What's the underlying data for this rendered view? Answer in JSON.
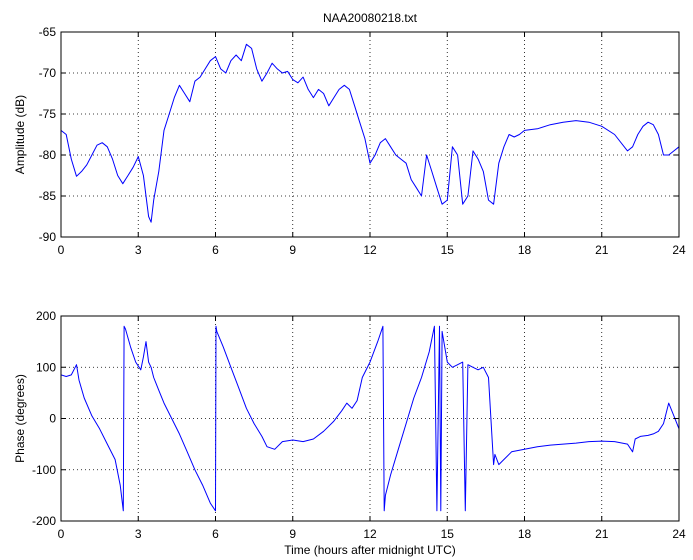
{
  "chart_data": [
    {
      "type": "line",
      "title": "NAA20080218.txt",
      "xlabel": "",
      "ylabel": "Amplitude (dB)",
      "xlim": [
        0,
        24
      ],
      "ylim": [
        -90,
        -65
      ],
      "xticks": [
        0,
        3,
        6,
        9,
        12,
        15,
        18,
        21,
        24
      ],
      "yticks": [
        -90,
        -85,
        -80,
        -75,
        -70,
        -65
      ],
      "grid": true,
      "color": "#0000ff",
      "series": [
        {
          "name": "",
          "x": [
            0,
            0.2,
            0.4,
            0.6,
            0.8,
            1.0,
            1.2,
            1.4,
            1.6,
            1.8,
            2.0,
            2.2,
            2.4,
            2.6,
            2.8,
            3.0,
            3.2,
            3.4,
            3.5,
            3.6,
            3.8,
            4.0,
            4.2,
            4.4,
            4.6,
            4.8,
            5.0,
            5.2,
            5.4,
            5.6,
            5.8,
            6.0,
            6.2,
            6.4,
            6.6,
            6.8,
            7.0,
            7.2,
            7.4,
            7.6,
            7.8,
            8.0,
            8.2,
            8.4,
            8.6,
            8.8,
            9.0,
            9.2,
            9.4,
            9.6,
            9.8,
            10.0,
            10.2,
            10.4,
            10.6,
            10.8,
            11.0,
            11.2,
            11.4,
            11.6,
            11.8,
            12.0,
            12.2,
            12.4,
            12.6,
            12.8,
            13.0,
            13.2,
            13.4,
            13.6,
            13.8,
            14.0,
            14.2,
            14.4,
            14.6,
            14.8,
            15.0,
            15.2,
            15.4,
            15.6,
            15.8,
            16.0,
            16.2,
            16.4,
            16.6,
            16.8,
            17.0,
            17.2,
            17.4,
            17.6,
            17.8,
            18.0,
            18.5,
            19.0,
            19.5,
            20.0,
            20.5,
            21.0,
            21.5,
            22.0,
            22.2,
            22.4,
            22.6,
            22.8,
            23.0,
            23.2,
            23.4,
            23.6,
            23.8,
            24.0
          ],
          "values": [
            -77.0,
            -77.5,
            -80.5,
            -82.6,
            -82.0,
            -81.2,
            -80.0,
            -78.8,
            -78.5,
            -79.0,
            -80.5,
            -82.5,
            -83.5,
            -82.5,
            -81.5,
            -80.2,
            -82.5,
            -87.5,
            -88.2,
            -85.5,
            -82.0,
            -77.0,
            -75.0,
            -73.0,
            -71.5,
            -72.5,
            -73.5,
            -71.0,
            -70.5,
            -69.5,
            -68.5,
            -68.0,
            -69.5,
            -70.0,
            -68.5,
            -67.8,
            -68.5,
            -66.5,
            -67.0,
            -69.5,
            -71.0,
            -70.0,
            -68.8,
            -69.5,
            -70.0,
            -69.8,
            -70.8,
            -71.2,
            -70.5,
            -72.0,
            -73.0,
            -72.0,
            -72.5,
            -74.0,
            -73.0,
            -72.0,
            -71.5,
            -72.0,
            -74.0,
            -76.0,
            -78.0,
            -81.0,
            -80.0,
            -78.5,
            -78.0,
            -79.0,
            -80.0,
            -80.5,
            -81.0,
            -83.0,
            -84.0,
            -85.0,
            -80.0,
            -82.0,
            -84.0,
            -86.0,
            -85.5,
            -79.0,
            -80.0,
            -86.0,
            -85.0,
            -79.5,
            -80.5,
            -82.0,
            -85.5,
            -86.0,
            -81.0,
            -79.0,
            -77.5,
            -77.8,
            -77.5,
            -77.0,
            -76.8,
            -76.3,
            -76.0,
            -75.8,
            -76.0,
            -76.5,
            -77.5,
            -79.5,
            -79.0,
            -77.5,
            -76.5,
            -76.0,
            -76.3,
            -77.5,
            -80.0,
            -80.0,
            -79.5,
            -79.0
          ]
        }
      ]
    },
    {
      "type": "line",
      "title": "",
      "xlabel": "Time (hours after midnight UTC)",
      "ylabel": "Phase (degrees)",
      "xlim": [
        0,
        24
      ],
      "ylim": [
        -200,
        200
      ],
      "xticks": [
        0,
        3,
        6,
        9,
        12,
        15,
        18,
        21,
        24
      ],
      "yticks": [
        -200,
        -100,
        0,
        100,
        200
      ],
      "grid": true,
      "color": "#0000ff",
      "series": [
        {
          "name": "",
          "x": [
            0,
            0.2,
            0.4,
            0.5,
            0.6,
            0.7,
            0.9,
            1.2,
            1.5,
            1.8,
            2.1,
            2.3,
            2.42,
            2.45,
            2.5,
            2.7,
            2.9,
            3.1,
            3.2,
            3.3,
            3.4,
            3.5,
            3.6,
            3.8,
            4.0,
            4.3,
            4.6,
            4.9,
            5.2,
            5.5,
            5.8,
            6.0,
            6.02,
            6.05,
            6.3,
            6.6,
            6.9,
            7.2,
            7.5,
            7.8,
            8.0,
            8.3,
            8.6,
            9.0,
            9.4,
            9.8,
            10.2,
            10.6,
            10.9,
            11.1,
            11.3,
            11.5,
            11.7,
            12.0,
            12.3,
            12.5,
            12.55,
            12.6,
            12.8,
            13.1,
            13.4,
            13.7,
            14.0,
            14.3,
            14.5,
            14.6,
            14.7,
            14.75,
            14.8,
            15.0,
            15.2,
            15.4,
            15.6,
            15.7,
            15.8,
            16.0,
            16.2,
            16.4,
            16.6,
            16.8,
            16.85,
            17.0,
            17.2,
            17.5,
            18.0,
            18.5,
            19.0,
            19.5,
            20.0,
            20.5,
            21.0,
            21.5,
            22.0,
            22.2,
            22.3,
            22.5,
            22.8,
            23.0,
            23.2,
            23.4,
            23.6,
            23.8,
            24.0
          ],
          "values": [
            85,
            82,
            85,
            95,
            105,
            75,
            40,
            5,
            -20,
            -50,
            -80,
            -130,
            -180,
            180,
            175,
            140,
            110,
            95,
            120,
            150,
            110,
            100,
            80,
            55,
            30,
            0,
            -30,
            -65,
            -100,
            -130,
            -165,
            -180,
            180,
            170,
            140,
            100,
            60,
            20,
            -10,
            -35,
            -55,
            -60,
            -45,
            -42,
            -45,
            -40,
            -25,
            -5,
            15,
            30,
            20,
            35,
            80,
            110,
            150,
            180,
            -180,
            -150,
            -110,
            -60,
            -10,
            40,
            80,
            130,
            180,
            -180,
            180,
            -180,
            170,
            110,
            100,
            105,
            110,
            -180,
            105,
            100,
            95,
            100,
            80,
            -90,
            -70,
            -90,
            -80,
            -65,
            -60,
            -55,
            -52,
            -50,
            -48,
            -45,
            -44,
            -45,
            -50,
            -65,
            -40,
            -35,
            -33,
            -30,
            -25,
            -10,
            30,
            5,
            -20
          ]
        }
      ]
    }
  ]
}
